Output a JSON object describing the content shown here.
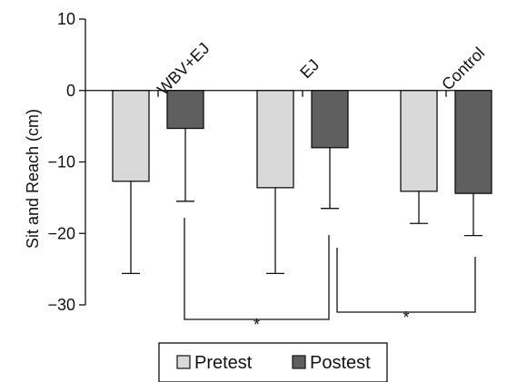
{
  "chart_data": {
    "type": "bar",
    "title": "",
    "xlabel": "",
    "ylabel": "Sit and Reach (cm)",
    "ylim": [
      -30,
      10
    ],
    "yticks": [
      10,
      0,
      -10,
      -20,
      -30
    ],
    "yticks_labels": [
      "10",
      "0",
      "−10",
      "−20",
      "−30"
    ],
    "categories": [
      "WBV+EJ",
      "EJ",
      "Control"
    ],
    "series": [
      {
        "name": "Pretest",
        "color": "#d9d9d9",
        "values": [
          -12.7,
          -13.6,
          -14.1
        ],
        "error_low": [
          -25.6,
          -25.6,
          -18.6
        ]
      },
      {
        "name": "Postest",
        "color": "#5f5f5f",
        "values": [
          -5.3,
          -8.0,
          -14.4
        ],
        "error_low": [
          -15.5,
          -16.5,
          -20.3
        ]
      }
    ],
    "error_bars": true,
    "legend": {
      "position": "bottom-center",
      "entries": [
        "Pretest",
        "Postest"
      ]
    },
    "significance": [
      {
        "from": 0,
        "to": 1,
        "label": "*"
      },
      {
        "from": 1,
        "to": 2,
        "label": "*"
      }
    ]
  }
}
